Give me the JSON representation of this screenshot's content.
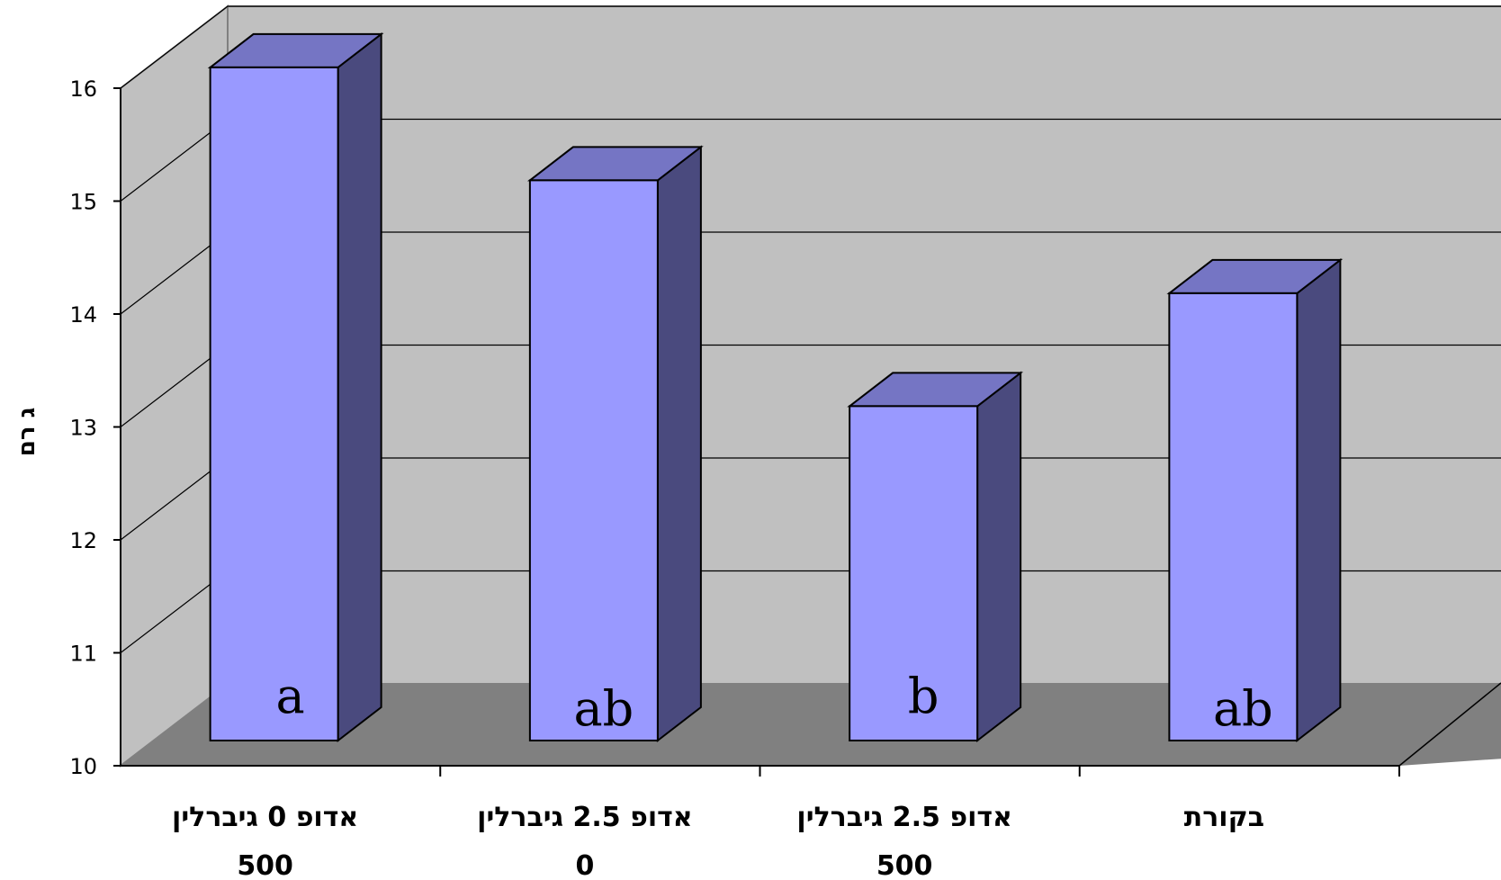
{
  "chart_data": {
    "type": "bar",
    "style": "3d-column",
    "categories": [
      [
        "אדופ 0 גיברלין",
        "500"
      ],
      [
        "אדופ 2.5 גיברלין",
        "0"
      ],
      [
        "אדופ 2.5 גיברלין",
        "500"
      ],
      [
        "בקורת"
      ]
    ],
    "values": [
      16.2,
      15.2,
      13.2,
      14.2
    ],
    "data_labels": [
      "a",
      "ab",
      "b",
      "ab"
    ],
    "ylabel": "ג רם",
    "ylim": [
      10,
      16
    ],
    "yticks": [
      10,
      11,
      12,
      13,
      14,
      15,
      16
    ],
    "grid": true,
    "legend": "none",
    "colors": {
      "bar_front": "#9999ff",
      "bar_top": "#7575c4",
      "bar_side": "#4a4a7e",
      "back_wall": "#c0c0c0",
      "side_wall": "#c0c0c0",
      "floor": "#808080",
      "gridline": "#000000"
    }
  }
}
